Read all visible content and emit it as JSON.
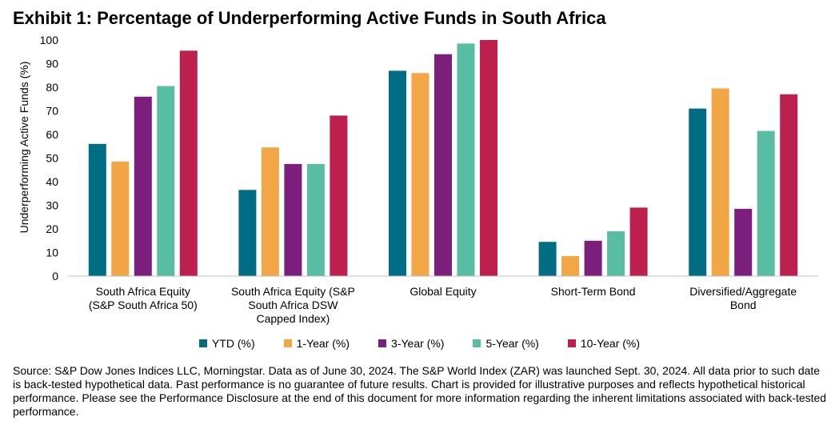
{
  "title": "Exhibit 1: Percentage of Underperforming Active Funds in South Africa",
  "source": "Source: S&P Dow Jones Indices LLC, Morningstar.  Data as of June 30, 2024.  The S&P World Index (ZAR) was launched Sept. 30, 2024.  All data prior to such date is back-tested hypothetical data.  Past performance is no guarantee of future results.  Chart is provided for illustrative purposes and reflects hypothetical historical performance.  Please see the Performance Disclosure at the end of this document for more information regarding the inherent limitations associated with back-tested performance.",
  "chart_data": {
    "type": "bar",
    "title": "Exhibit 1: Percentage of Underperforming Active Funds in South Africa",
    "xlabel": "",
    "ylabel": "Underperforming Active Funds (%)",
    "ylim": [
      0,
      100
    ],
    "yticks": [
      "0",
      "10",
      "20",
      "30",
      "40",
      "50",
      "60",
      "70",
      "80",
      "90",
      "100"
    ],
    "grid": false,
    "legend_position": "bottom",
    "categories": [
      [
        "South Africa Equity",
        "(S&P South Africa 50)"
      ],
      [
        "South Africa Equity (S&P",
        "South Africa DSW",
        "Capped Index)"
      ],
      [
        "Global Equity"
      ],
      [
        "Short-Term Bond"
      ],
      [
        "Diversified/Aggregate",
        "Bond"
      ]
    ],
    "series": [
      {
        "name": "YTD (%)",
        "color": "#006d85",
        "values": [
          56,
          36.5,
          87,
          14.5,
          71
        ]
      },
      {
        "name": "1-Year (%)",
        "color": "#f2a646",
        "values": [
          48.5,
          54.5,
          86,
          8.5,
          79.5
        ]
      },
      {
        "name": "3-Year (%)",
        "color": "#7c1f7c",
        "values": [
          76,
          47.5,
          94,
          15,
          28.5
        ]
      },
      {
        "name": "5-Year (%)",
        "color": "#58bda3",
        "values": [
          80.5,
          47.5,
          98.5,
          19,
          61.5
        ]
      },
      {
        "name": "10-Year (%)",
        "color": "#bd1f4e",
        "values": [
          95.5,
          68,
          100,
          29,
          77
        ]
      }
    ]
  }
}
